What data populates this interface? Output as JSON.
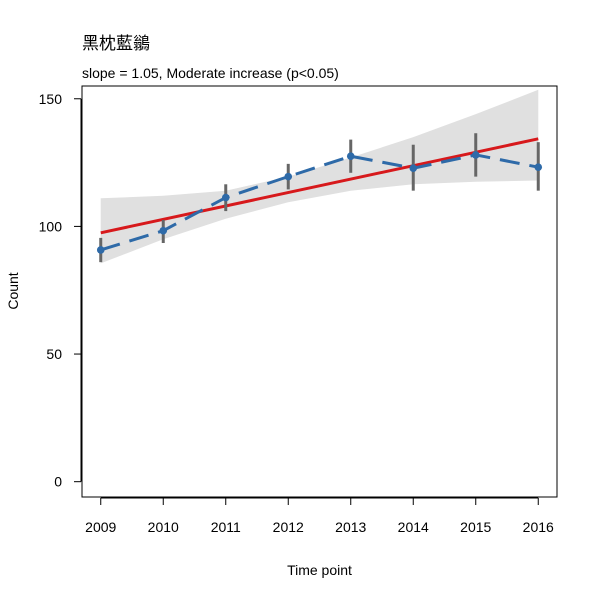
{
  "chart_data": {
    "type": "line",
    "title": "黑枕藍鶲",
    "subtitle": "slope = 1.05, Moderate increase (p<0.05)",
    "xlabel": "Time point",
    "ylabel": "Count",
    "x": [
      2009,
      2010,
      2011,
      2012,
      2013,
      2014,
      2015,
      2016
    ],
    "xticks": [
      "2009",
      "2010",
      "2011",
      "2012",
      "2013",
      "2014",
      "2015",
      "2016"
    ],
    "yticks": [
      "0",
      "50",
      "100",
      "150"
    ],
    "xlim": [
      2008.7,
      2016.3
    ],
    "ylim": [
      -6,
      155
    ],
    "observed": {
      "values": [
        90.8,
        98.3,
        111.3,
        119.5,
        127.5,
        122.8,
        128.0,
        123.2
      ],
      "lower": [
        86.0,
        93.5,
        106.0,
        114.5,
        121.0,
        114.0,
        119.5,
        114.0
      ],
      "upper": [
        95.5,
        102.5,
        116.5,
        124.5,
        134.0,
        132.0,
        136.5,
        133.0
      ],
      "color": "#2e6aa8",
      "errorbar_color": "#666666",
      "style": "dashed"
    },
    "trend": {
      "start": 97.5,
      "end": 134.3,
      "color": "#d7191c"
    },
    "confidence_band": {
      "lower": [
        85.5,
        95.0,
        103.0,
        109.5,
        114.0,
        116.5,
        117.5,
        118.0
      ],
      "upper": [
        111.0,
        112.0,
        114.0,
        119.5,
        127.0,
        135.0,
        144.0,
        153.5
      ],
      "color": "#e0e0e0"
    },
    "grid": false
  }
}
